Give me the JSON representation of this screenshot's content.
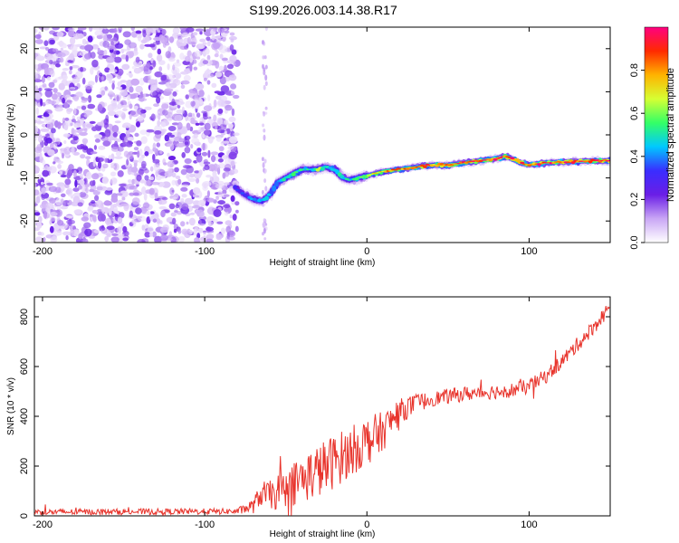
{
  "page": {
    "title": "S199.2026.003.14.38.R17"
  },
  "chart_data": [
    {
      "type": "heatmap",
      "name": "spectrogram",
      "xlabel": "Height of straight line (km)",
      "ylabel": "Frequency (Hz)",
      "xlim": [
        -205,
        150
      ],
      "ylim": [
        -25,
        25
      ],
      "xticks": [
        {
          "value": -200,
          "label": "-200"
        },
        {
          "value": -100,
          "label": "-100"
        },
        {
          "value": 0,
          "label": "0"
        },
        {
          "value": 100,
          "label": "100"
        }
      ],
      "yticks": [
        {
          "value": -20,
          "label": "-20"
        },
        {
          "value": -10,
          "label": "-10"
        },
        {
          "value": 0,
          "label": "0"
        },
        {
          "value": 10,
          "label": "10"
        },
        {
          "value": 20,
          "label": "20"
        }
      ],
      "noise_region_x": [
        -205,
        -80
      ],
      "noise_stripe_x": -63,
      "ridge": {
        "x": [
          -82,
          -75,
          -70,
          -65,
          -60,
          -55,
          -50,
          -45,
          -40,
          -35,
          -30,
          -25,
          -20,
          -15,
          -10,
          -5,
          0,
          5,
          10,
          20,
          30,
          40,
          50,
          60,
          70,
          80,
          85,
          90,
          95,
          100,
          110,
          120,
          130,
          140,
          150
        ],
        "freq": [
          -12,
          -14,
          -15,
          -15.5,
          -14,
          -11,
          -10,
          -9,
          -8,
          -8,
          -8,
          -7.5,
          -8,
          -10,
          -10.5,
          -10,
          -9.5,
          -9,
          -8.5,
          -8,
          -7.5,
          -7,
          -7,
          -6.5,
          -6,
          -5.5,
          -5,
          -5.5,
          -6.5,
          -7,
          -6.5,
          -6.3,
          -6.2,
          -6,
          -6
        ],
        "amplitude": [
          0.3,
          0.35,
          0.4,
          0.45,
          0.4,
          0.45,
          0.5,
          0.55,
          0.5,
          0.5,
          0.6,
          0.5,
          0.5,
          0.45,
          0.5,
          0.6,
          0.65,
          0.7,
          0.75,
          0.8,
          0.8,
          0.85,
          0.85,
          0.85,
          0.9,
          0.9,
          0.85,
          0.9,
          0.85,
          0.85,
          0.9,
          0.9,
          0.9,
          0.9,
          0.9
        ]
      }
    },
    {
      "type": "line",
      "name": "snr",
      "xlabel": "Height of straight line (km)",
      "ylabel": "SNR (10 * v/v)",
      "xlim": [
        -205,
        150
      ],
      "ylim": [
        0,
        880
      ],
      "color": "#e8342c",
      "xticks": [
        {
          "value": -200,
          "label": "-200"
        },
        {
          "value": -100,
          "label": "-100"
        },
        {
          "value": 0,
          "label": "0"
        },
        {
          "value": 100,
          "label": "100"
        }
      ],
      "yticks": [
        {
          "value": 0,
          "label": "0"
        },
        {
          "value": 200,
          "label": "200"
        },
        {
          "value": 400,
          "label": "400"
        },
        {
          "value": 600,
          "label": "600"
        },
        {
          "value": 800,
          "label": "800"
        }
      ],
      "baseline": {
        "x": [
          -205,
          -80,
          -70,
          -65,
          -60,
          -50,
          -40,
          -30,
          -20,
          -10,
          0,
          10,
          20,
          30,
          40,
          50,
          60,
          70,
          80,
          90,
          100,
          110,
          120,
          130,
          140,
          150
        ],
        "snr": [
          15,
          18,
          40,
          90,
          80,
          110,
          150,
          180,
          220,
          260,
          300,
          340,
          420,
          450,
          470,
          480,
          490,
          495,
          500,
          505,
          520,
          560,
          620,
          690,
          760,
          840
        ],
        "noise_amp": [
          12,
          12,
          30,
          50,
          60,
          80,
          100,
          110,
          110,
          100,
          100,
          80,
          50,
          40,
          30,
          30,
          30,
          30,
          30,
          30,
          30,
          30,
          30,
          30,
          30,
          30
        ]
      }
    }
  ],
  "colorbar": {
    "label": "Normalized spectral amplitude",
    "range": [
      0,
      1
    ],
    "ticks": [
      {
        "value": 0.0,
        "label": "0.0"
      },
      {
        "value": 0.2,
        "label": "0.2"
      },
      {
        "value": 0.4,
        "label": "0.4"
      },
      {
        "value": 0.6,
        "label": "0.6"
      },
      {
        "value": 0.8,
        "label": "0.8"
      }
    ],
    "stops": [
      "#ffffff",
      "#c9a6f5",
      "#6a1ee6",
      "#3a2dff",
      "#00c8ff",
      "#33ff66",
      "#d6ff33",
      "#ffb300",
      "#ff2a00",
      "#ff0080"
    ]
  }
}
